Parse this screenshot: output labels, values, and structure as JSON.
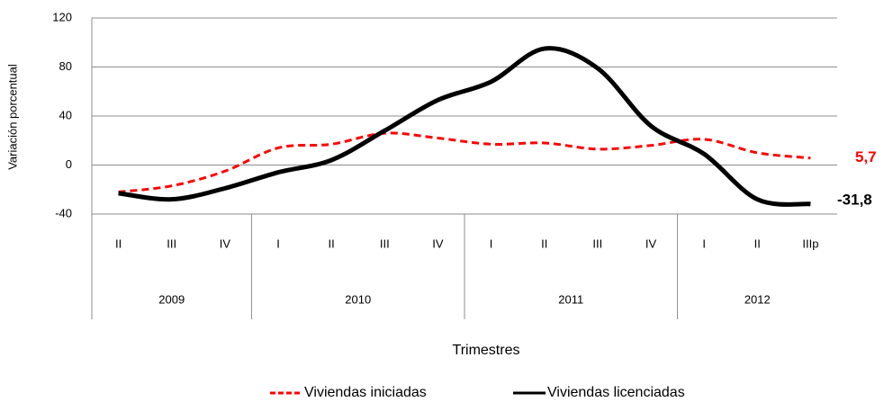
{
  "chart_data": {
    "type": "line",
    "y_label": "Variación porcentual",
    "x_label": "Trimestres",
    "categories": [
      {
        "quarter": "II",
        "year": "2009"
      },
      {
        "quarter": "III",
        "year": "2009"
      },
      {
        "quarter": "IV",
        "year": "2009"
      },
      {
        "quarter": "I",
        "year": "2010"
      },
      {
        "quarter": "II",
        "year": "2010"
      },
      {
        "quarter": "III",
        "year": "2010"
      },
      {
        "quarter": "IV",
        "year": "2010"
      },
      {
        "quarter": "I",
        "year": "2011"
      },
      {
        "quarter": "II",
        "year": "2011"
      },
      {
        "quarter": "III",
        "year": "2011"
      },
      {
        "quarter": "IV",
        "year": "2011"
      },
      {
        "quarter": "I",
        "year": "2012"
      },
      {
        "quarter": "II",
        "year": "2012"
      },
      {
        "quarter": "IIIp",
        "year": "2012"
      }
    ],
    "series": [
      {
        "name": "Viviendas iniciadas",
        "color": "#ff0000",
        "dashed": true,
        "values": [
          -22,
          -17,
          -5,
          14,
          17,
          26,
          22,
          17,
          18,
          13,
          16,
          21,
          10,
          5.7
        ],
        "value_labels": [
          null,
          null,
          null,
          null,
          null,
          null,
          null,
          null,
          null,
          null,
          null,
          null,
          null,
          "5,7"
        ]
      },
      {
        "name": "Viviendas licenciadas",
        "color": "#000000",
        "dashed": false,
        "values": [
          -23,
          -28,
          -19,
          -6,
          4,
          28,
          53,
          68,
          95,
          79,
          32,
          9,
          -28,
          -31.8
        ],
        "value_labels": [
          null,
          null,
          null,
          null,
          null,
          null,
          null,
          null,
          null,
          null,
          null,
          null,
          null,
          "-31,8"
        ]
      }
    ],
    "ylim": [
      -40,
      120
    ],
    "yticks": [
      -40,
      0,
      40,
      80,
      120
    ],
    "grid": true
  }
}
